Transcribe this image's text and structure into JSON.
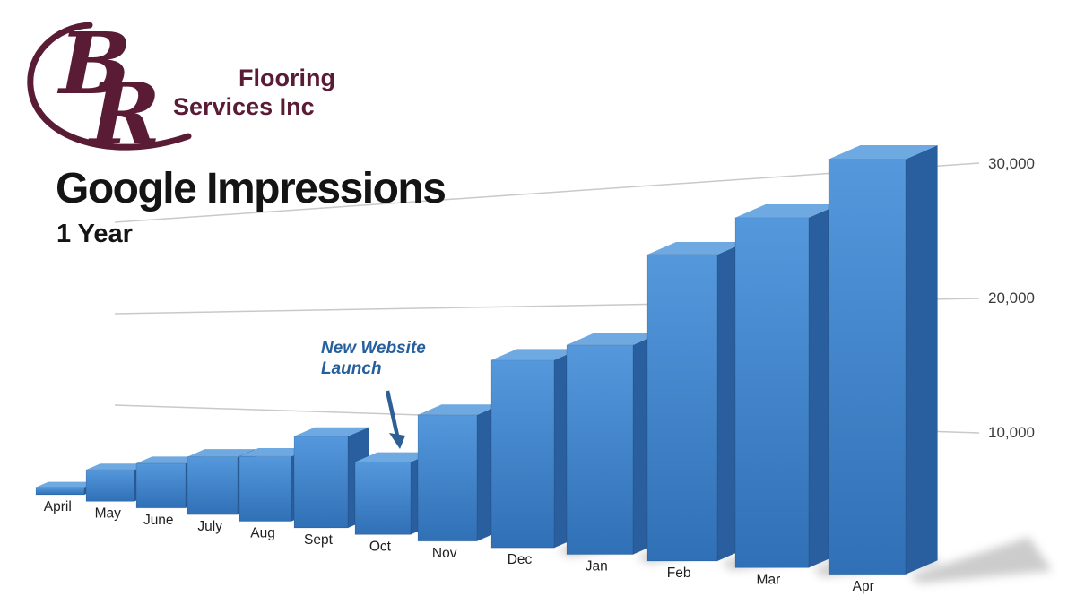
{
  "logo": {
    "monogram_b": "B",
    "monogram_r": "R",
    "line1": "Flooring",
    "line2": "Services Inc"
  },
  "title": "Google Impressions",
  "subtitle": "1 Year",
  "annotation": {
    "line1": "New Website",
    "line2": "Launch"
  },
  "axis": {
    "labels": [
      "30,000",
      "20,000",
      "10,000"
    ]
  },
  "chart_data": {
    "type": "bar",
    "title": "Google Impressions",
    "subtitle": "1 Year",
    "categories": [
      "April",
      "May",
      "June",
      "July",
      "Aug",
      "Sept",
      "Oct",
      "Nov",
      "Dec",
      "Jan",
      "Feb",
      "Mar",
      "Apr"
    ],
    "values": [
      600,
      2500,
      3500,
      4500,
      5000,
      7000,
      5500,
      9500,
      14000,
      15500,
      22500,
      25500,
      30000
    ],
    "xlabel": "",
    "ylabel": "",
    "ylim": [
      0,
      32000
    ],
    "ytick_labels": [
      "10,000",
      "20,000",
      "30,000"
    ],
    "grid": "horizontal",
    "legend": "none",
    "style": "3d-perspective-bars",
    "annotation": {
      "text": "New Website Launch",
      "target_category": "Oct"
    }
  },
  "colors": {
    "bar_front_light": "#5598dc",
    "bar_front_dark": "#3070b6",
    "bar_side": "#2a5f9f",
    "bar_top": "#6fa9e2",
    "accent_annotation": "#26609c",
    "arrow": "#2d5f94",
    "logo": "#5a1b35",
    "grid": "#c9c9c9",
    "axis_text": "#3a3a3a",
    "label_text": "#1e1e1e",
    "shadow": "#8f8f8f"
  }
}
